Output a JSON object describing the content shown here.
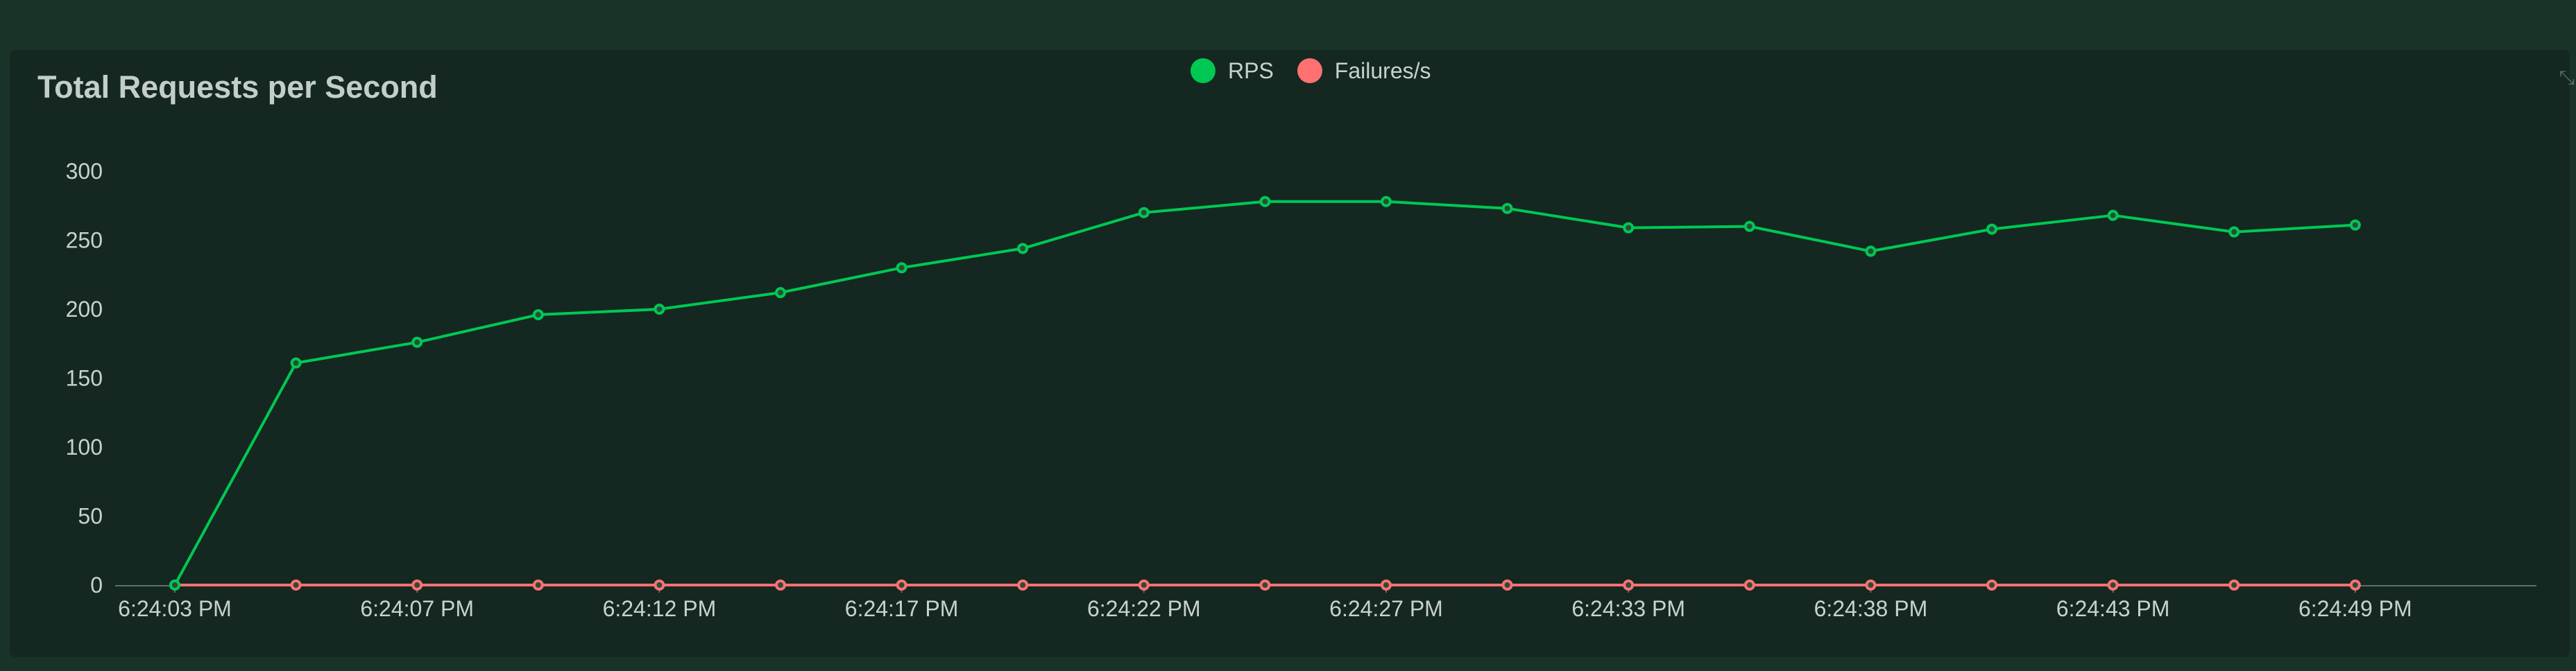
{
  "chart_data": {
    "type": "line",
    "title": "Total Requests per Second",
    "xlabel": "",
    "ylabel": "",
    "ylim": [
      0,
      300
    ],
    "yticks": [
      0,
      50,
      100,
      150,
      200,
      250,
      300
    ],
    "x": [
      "6:24:03 PM",
      "6:24:05 PM",
      "6:24:07 PM",
      "6:24:10 PM",
      "6:24:12 PM",
      "6:24:14 PM",
      "6:24:17 PM",
      "6:24:19 PM",
      "6:24:22 PM",
      "6:24:24 PM",
      "6:24:27 PM",
      "6:24:30 PM",
      "6:24:33 PM",
      "6:24:35 PM",
      "6:24:38 PM",
      "6:24:40 PM",
      "6:24:43 PM",
      "6:24:46 PM",
      "6:24:49 PM"
    ],
    "xtick_labels": [
      "6:24:03 PM",
      "6:24:07 PM",
      "6:24:12 PM",
      "6:24:17 PM",
      "6:24:22 PM",
      "6:24:27 PM",
      "6:24:33 PM",
      "6:24:38 PM",
      "6:24:43 PM",
      "6:24:49 PM"
    ],
    "series": [
      {
        "name": "RPS",
        "color": "#00c853",
        "values": [
          0,
          161,
          176,
          196,
          200,
          212,
          230,
          244,
          270,
          278,
          278,
          273,
          259,
          260,
          242,
          258,
          268,
          256,
          261
        ]
      },
      {
        "name": "Failures/s",
        "color": "#ff7171",
        "values": [
          0,
          0,
          0,
          0,
          0,
          0,
          0,
          0,
          0,
          0,
          0,
          0,
          0,
          0,
          0,
          0,
          0,
          0,
          0
        ]
      }
    ],
    "legend_position": "top-center",
    "grid": false
  }
}
